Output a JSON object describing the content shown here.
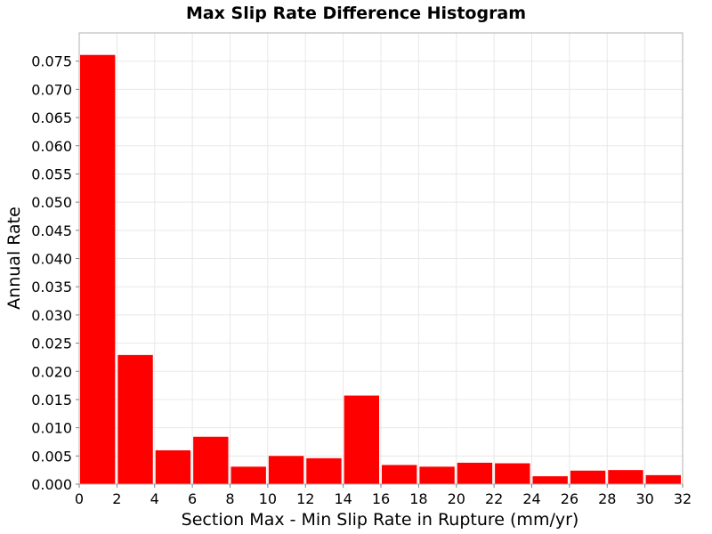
{
  "chart_data": {
    "type": "bar",
    "title": "Max Slip Rate Difference Histogram",
    "xlabel": "Section Max - Min Slip Rate in Rupture (mm/yr)",
    "ylabel": "Annual Rate",
    "xlim": [
      0,
      32
    ],
    "ylim": [
      0,
      0.08
    ],
    "bin_width": 2,
    "x": [
      1,
      3,
      5,
      7,
      9,
      11,
      13,
      15,
      17,
      19,
      21,
      23,
      25,
      27,
      29,
      31
    ],
    "values": [
      0.0761,
      0.0229,
      0.006,
      0.0084,
      0.0031,
      0.005,
      0.0046,
      0.0157,
      0.0034,
      0.0031,
      0.0038,
      0.0037,
      0.0014,
      0.0024,
      0.0025,
      0.0016
    ],
    "bar_color": "#ff0000",
    "x_ticks": [
      "0",
      "2",
      "4",
      "6",
      "8",
      "10",
      "12",
      "14",
      "16",
      "18",
      "20",
      "22",
      "24",
      "26",
      "28",
      "30",
      "32"
    ],
    "y_ticks": [
      "0.000",
      "0.005",
      "0.010",
      "0.015",
      "0.020",
      "0.025",
      "0.030",
      "0.035",
      "0.040",
      "0.045",
      "0.050",
      "0.055",
      "0.060",
      "0.065",
      "0.070",
      "0.075"
    ],
    "grid": true,
    "legend": false
  }
}
